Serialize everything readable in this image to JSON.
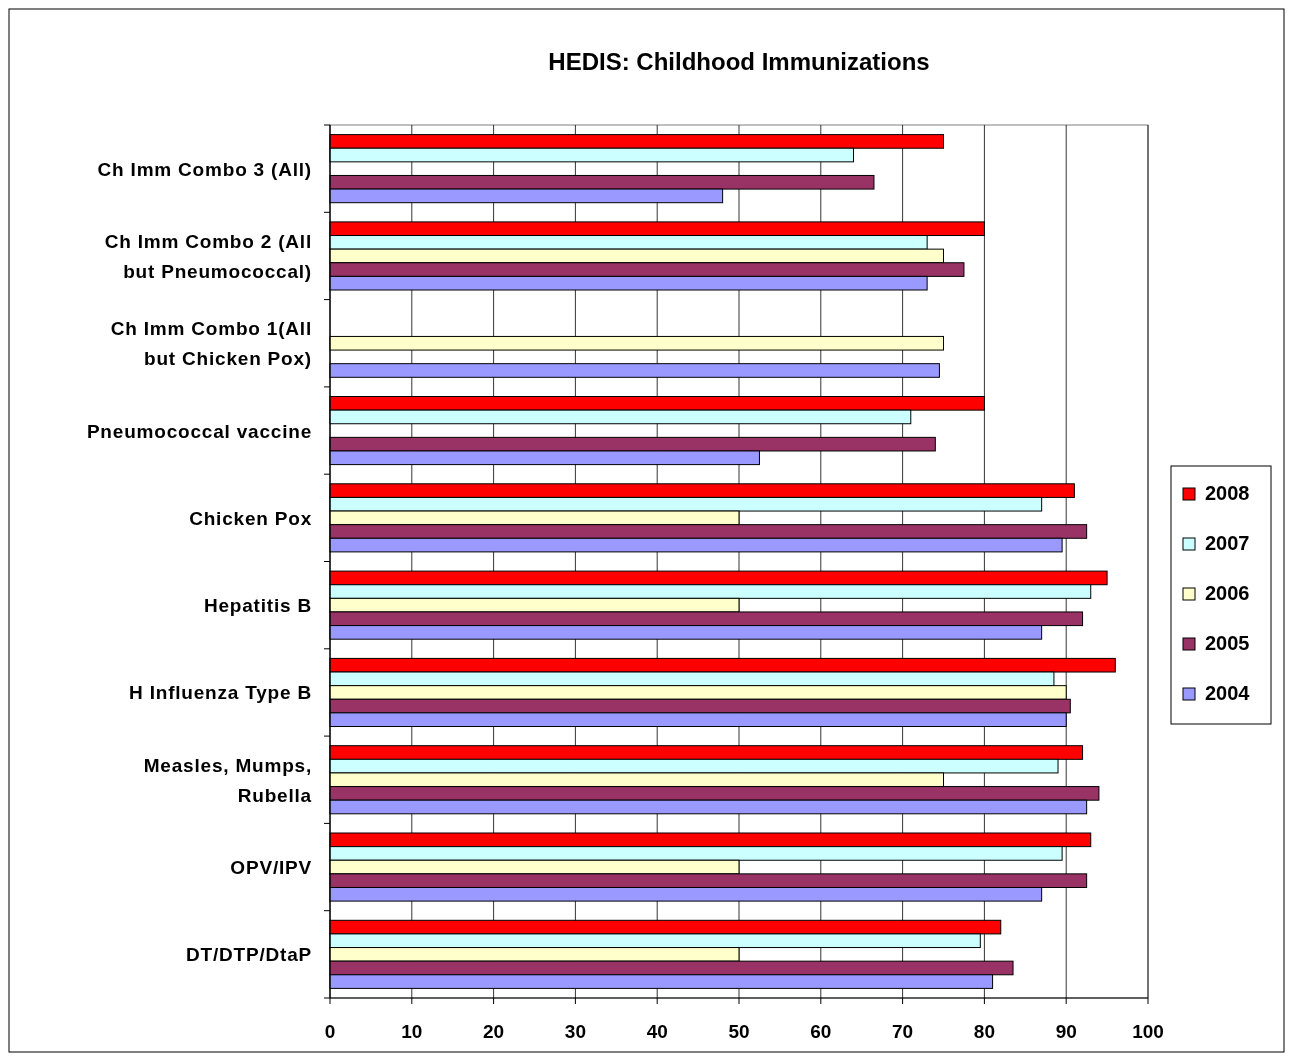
{
  "chart_data": {
    "type": "bar",
    "orientation": "horizontal",
    "title": "HEDIS: Childhood Immunizations",
    "categories": [
      "Ch Imm Combo 3 (All)",
      "Ch Imm Combo 2 (All but Pneumococcal)",
      "Ch Imm Combo 1(All but Chicken Pox)",
      "Pneumococcal vaccine",
      "Chicken Pox",
      "Hepatitis B",
      "H Influenza Type B",
      "Measles, Mumps, Rubella",
      "OPV/IPV",
      "DT/DTP/DtaP"
    ],
    "series": [
      {
        "name": "2008",
        "color": "#ff0000",
        "values": [
          75,
          80,
          null,
          80,
          91,
          95,
          96,
          92,
          93,
          82
        ]
      },
      {
        "name": "2007",
        "color": "#ccffff",
        "values": [
          64,
          73,
          null,
          71,
          87,
          93,
          88.5,
          89,
          89.5,
          79.5
        ]
      },
      {
        "name": "2006",
        "color": "#ffffcc",
        "values": [
          null,
          75,
          75,
          null,
          50,
          50,
          90,
          75,
          50,
          50
        ]
      },
      {
        "name": "2005",
        "color": "#993366",
        "values": [
          66.5,
          77.5,
          null,
          74,
          92.5,
          92,
          90.5,
          94,
          92.5,
          83.5
        ]
      },
      {
        "name": "2004",
        "color": "#9999ff",
        "values": [
          48,
          73,
          74.5,
          52.5,
          89.5,
          87,
          90,
          92.5,
          87,
          81
        ]
      }
    ],
    "xlim": [
      0,
      100
    ],
    "xticks": [
      0,
      10,
      20,
      30,
      40,
      50,
      60,
      70,
      80,
      90,
      100
    ],
    "grid": "x",
    "legend": "right"
  }
}
